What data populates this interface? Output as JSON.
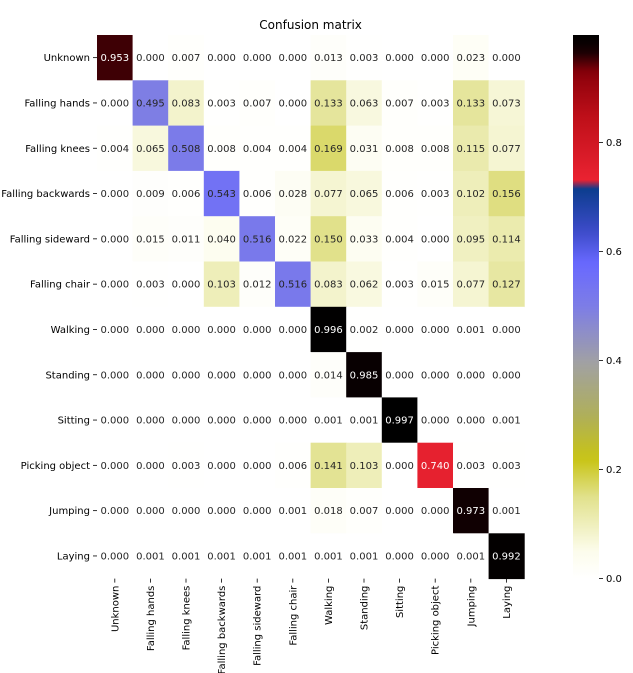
{
  "chart_data": {
    "type": "heatmap",
    "title": "Confusion matrix",
    "rows": [
      "Unknown",
      "Falling hands",
      "Falling knees",
      "Falling backwards",
      "Falling sideward",
      "Falling chair",
      "Walking",
      "Standing",
      "Sitting",
      "Picking object",
      "Jumping",
      "Laying"
    ],
    "cols": [
      "Unknown",
      "Falling hands",
      "Falling knees",
      "Falling backwards",
      "Falling sideward",
      "Falling chair",
      "Walking",
      "Standing",
      "Sitting",
      "Picking object",
      "Jumping",
      "Laying"
    ],
    "values": [
      [
        0.953,
        0.0,
        0.007,
        0.0,
        0.0,
        0.0,
        0.013,
        0.003,
        0.0,
        0.0,
        0.023,
        0.0
      ],
      [
        0.0,
        0.495,
        0.083,
        0.003,
        0.007,
        0.0,
        0.133,
        0.063,
        0.007,
        0.003,
        0.133,
        0.073
      ],
      [
        0.004,
        0.065,
        0.508,
        0.008,
        0.004,
        0.004,
        0.169,
        0.031,
        0.008,
        0.008,
        0.115,
        0.077
      ],
      [
        0.0,
        0.009,
        0.006,
        0.543,
        0.006,
        0.028,
        0.077,
        0.065,
        0.006,
        0.003,
        0.102,
        0.156
      ],
      [
        0.0,
        0.015,
        0.011,
        0.04,
        0.516,
        0.022,
        0.15,
        0.033,
        0.004,
        0.0,
        0.095,
        0.114
      ],
      [
        0.0,
        0.003,
        0.0,
        0.103,
        0.012,
        0.516,
        0.083,
        0.062,
        0.003,
        0.015,
        0.077,
        0.127
      ],
      [
        0.0,
        0.0,
        0.0,
        0.0,
        0.0,
        0.0,
        0.996,
        0.002,
        0.0,
        0.0,
        0.001,
        0.0
      ],
      [
        0.0,
        0.0,
        0.0,
        0.0,
        0.0,
        0.0,
        0.014,
        0.985,
        0.0,
        0.0,
        0.0,
        0.0
      ],
      [
        0.0,
        0.0,
        0.0,
        0.0,
        0.0,
        0.0,
        0.001,
        0.001,
        0.997,
        0.0,
        0.0,
        0.001
      ],
      [
        0.0,
        0.0,
        0.003,
        0.0,
        0.0,
        0.006,
        0.141,
        0.103,
        0.0,
        0.74,
        0.003,
        0.003
      ],
      [
        0.0,
        0.0,
        0.0,
        0.0,
        0.0,
        0.001,
        0.018,
        0.007,
        0.0,
        0.0,
        0.973,
        0.001
      ],
      [
        0.0,
        0.001,
        0.001,
        0.001,
        0.001,
        0.001,
        0.001,
        0.001,
        0.0,
        0.0,
        0.001,
        0.992
      ]
    ],
    "vmin": 0.0,
    "vmax": 0.997,
    "colormap": "gist_stern_r",
    "colorbar_ticks": [
      0.0,
      0.2,
      0.4,
      0.6,
      0.8
    ],
    "colorbar_tick_labels": [
      "0.0",
      "0.2",
      "0.4",
      "0.6",
      "0.8"
    ],
    "value_format": "3 decimals",
    "colorbar_position": "right"
  }
}
